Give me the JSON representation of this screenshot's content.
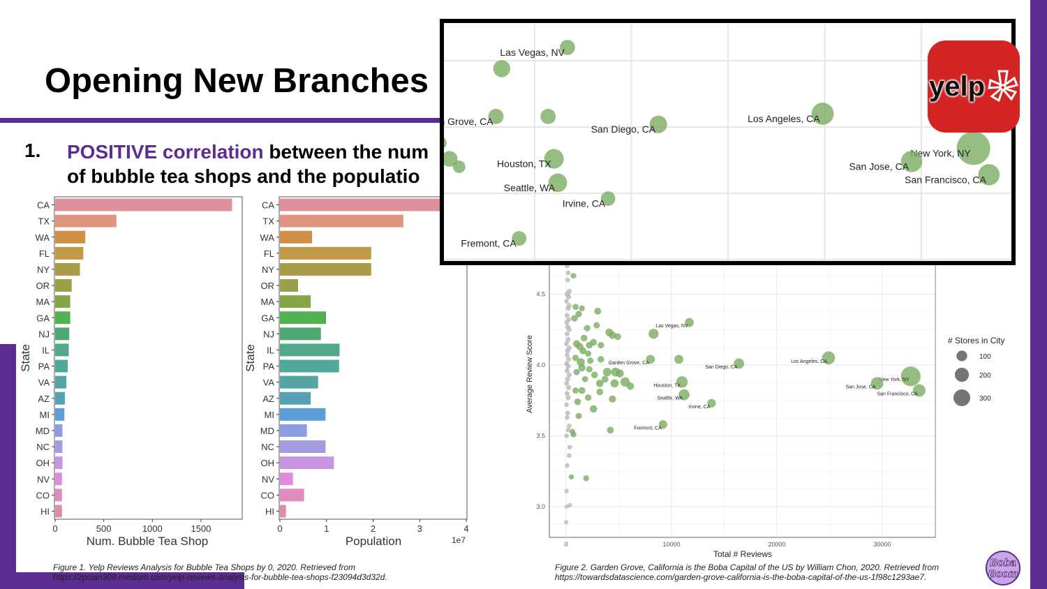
{
  "slide": {
    "title": "Opening New Branches",
    "bullet_number": "1.",
    "bullet_highlight": "POSITIVE correlation",
    "bullet_line1_rest": " between the num",
    "bullet_line2": "of bubble tea shops and the populatio",
    "caption1_line1": "Figure 1. Yelp Reviews Analysis for Bubble Tea Shops by 0, 2020. Retrieved from",
    "caption1_line2": "https://zpcian309.medium.com/yelp-reviews-analysis-for-bubble-tea-shops-f23094d3d32d.",
    "caption2_line1": "Figure 2. Garden Grove, California is the Boba Capital of the US by William Chon, 2020. Retrieved from",
    "caption2_line2": "https://towardsdatascience.com/garden-grove-california-is-the-boba-capital-of-the-us-1f98c1293ae7.",
    "yelp_logo_text": "yelp",
    "boba_logo_text": "Boba Boom",
    "accent_color": "#5b2c91",
    "yelp_red": "#d32323"
  },
  "chart_data": [
    {
      "type": "bar",
      "orientation": "horizontal",
      "categories": [
        "CA",
        "TX",
        "WA",
        "FL",
        "NY",
        "OR",
        "MA",
        "GA",
        "NJ",
        "IL",
        "PA",
        "VA",
        "AZ",
        "MI",
        "MD",
        "NC",
        "OH",
        "NV",
        "CO",
        "HI"
      ],
      "values": [
        1820,
        630,
        310,
        290,
        255,
        170,
        155,
        155,
        145,
        140,
        130,
        115,
        100,
        95,
        75,
        75,
        75,
        70,
        70,
        70
      ],
      "colors": [
        "#e0909c",
        "#e0937f",
        "#d08f45",
        "#c09a44",
        "#a89c46",
        "#9aa046",
        "#84a648",
        "#52b04e",
        "#4eaa72",
        "#4fa98a",
        "#50a896",
        "#52a5a3",
        "#54a2b4",
        "#5c9fd6",
        "#8c9ce0",
        "#a49be0",
        "#c896e0",
        "#e08ae0",
        "#e08cc0",
        "#e08cac"
      ],
      "xlabel": "Num. Bubble Tea Shop",
      "ylabel": "State",
      "xticks": [
        "0",
        "500",
        "1000",
        "1500"
      ],
      "xlim": [
        0,
        1930
      ]
    },
    {
      "type": "bar",
      "orientation": "horizontal",
      "categories": [
        "CA",
        "TX",
        "WA",
        "FL",
        "NY",
        "OR",
        "MA",
        "GA",
        "NJ",
        "IL",
        "PA",
        "VA",
        "AZ",
        "MI",
        "MD",
        "NC",
        "OH",
        "NV",
        "CO",
        "HI"
      ],
      "values": [
        3.95,
        2.65,
        0.69,
        1.96,
        1.96,
        0.39,
        0.66,
        0.99,
        0.88,
        1.28,
        1.27,
        0.82,
        0.66,
        0.98,
        0.58,
        0.98,
        1.16,
        0.28,
        0.52,
        0.13
      ],
      "colors": [
        "#e0909c",
        "#e0937f",
        "#d08f45",
        "#c09a44",
        "#a89c46",
        "#9aa046",
        "#84a648",
        "#52b04e",
        "#4eaa72",
        "#4fa98a",
        "#50a896",
        "#52a5a3",
        "#54a2b4",
        "#5c9fd6",
        "#8c9ce0",
        "#a49be0",
        "#c896e0",
        "#e08ae0",
        "#e08cc0",
        "#e08cac"
      ],
      "xlabel": "Population",
      "ylabel": "State",
      "xticks": [
        "0",
        "1",
        "2",
        "3",
        "4"
      ],
      "x_multiplier": "1e7",
      "xlim": [
        0,
        4.02
      ]
    },
    {
      "type": "scatter",
      "xlabel": "Total # Reviews",
      "ylabel": "Average Review Score",
      "xticks": [
        "0",
        "10000",
        "20000",
        "30000"
      ],
      "yticks": [
        "3.0",
        "3.5",
        "4.0",
        "4.5"
      ],
      "xlim": [
        -1600,
        35000
      ],
      "ylim": [
        2.8,
        4.75
      ],
      "legend_title": "# Stores in City",
      "legend_sizes": [
        "100",
        "200",
        "300"
      ],
      "legend_position": "right",
      "green": "#7aab62",
      "gray": "#b4b4b4",
      "labeled_points": [
        {
          "label": "Las Vegas, NV",
          "reviews": 11700,
          "score": 4.3,
          "stores": 40
        },
        {
          "label": "Garden Grove, CA",
          "reviews": 8000,
          "score": 4.04,
          "stores": 40
        },
        {
          "label": "San Diego, CA",
          "reviews": 16400,
          "score": 4.01,
          "stores": 60
        },
        {
          "label": "Los Angeles, CA",
          "reviews": 24900,
          "score": 4.05,
          "stores": 110
        },
        {
          "label": "Houston, TX",
          "reviews": 11000,
          "score": 3.88,
          "stores": 80
        },
        {
          "label": "Seattle, WA",
          "reviews": 11200,
          "score": 3.79,
          "stores": 70
        },
        {
          "label": "Irvine, CA",
          "reviews": 13800,
          "score": 3.73,
          "stores": 35
        },
        {
          "label": "Fremont, CA",
          "reviews": 9200,
          "score": 3.58,
          "stores": 35
        },
        {
          "label": "New York, NY",
          "reviews": 32700,
          "score": 3.92,
          "stores": 300
        },
        {
          "label": "San Jose, CA",
          "reviews": 29500,
          "score": 3.87,
          "stores": 100
        },
        {
          "label": "San Francisco, CA",
          "reviews": 33500,
          "score": 3.82,
          "stores": 100
        }
      ],
      "other_green_points": [
        [
          8300,
          4.22,
          55
        ],
        [
          10700,
          4.04,
          40
        ],
        [
          700,
          4.63,
          8
        ],
        [
          900,
          4.41,
          12
        ],
        [
          1500,
          4.4,
          10
        ],
        [
          3000,
          4.38,
          18
        ],
        [
          1200,
          4.36,
          14
        ],
        [
          800,
          4.33,
          16
        ],
        [
          2000,
          4.26,
          14
        ],
        [
          2900,
          4.28,
          14
        ],
        [
          4100,
          4.23,
          25
        ],
        [
          4400,
          4.21,
          22
        ],
        [
          4900,
          4.2,
          16
        ],
        [
          1700,
          4.19,
          16
        ],
        [
          2200,
          4.14,
          16
        ],
        [
          2600,
          4.16,
          18
        ],
        [
          3300,
          4.14,
          14
        ],
        [
          1000,
          4.15,
          20
        ],
        [
          1300,
          4.13,
          22
        ],
        [
          1600,
          4.1,
          18
        ],
        [
          2100,
          4.08,
          12
        ],
        [
          900,
          4.05,
          14
        ],
        [
          1400,
          4.02,
          28
        ],
        [
          2300,
          4.03,
          14
        ],
        [
          3300,
          4.04,
          16
        ],
        [
          1500,
          3.98,
          20
        ],
        [
          2200,
          3.97,
          14
        ],
        [
          1000,
          3.95,
          12
        ],
        [
          2700,
          3.93,
          16
        ],
        [
          3900,
          3.95,
          35
        ],
        [
          4700,
          3.95,
          40
        ],
        [
          5100,
          3.94,
          28
        ],
        [
          3700,
          3.9,
          16
        ],
        [
          3200,
          3.87,
          22
        ],
        [
          4600,
          3.87,
          30
        ],
        [
          5600,
          3.88,
          45
        ],
        [
          6100,
          3.85,
          22
        ],
        [
          1800,
          3.9,
          12
        ],
        [
          900,
          3.82,
          12
        ],
        [
          1500,
          3.82,
          18
        ],
        [
          3200,
          3.81,
          16
        ],
        [
          2100,
          3.77,
          14
        ],
        [
          4400,
          3.76,
          20
        ],
        [
          1100,
          3.74,
          16
        ],
        [
          2600,
          3.69,
          22
        ],
        [
          1200,
          3.64,
          12
        ],
        [
          4200,
          3.54,
          18
        ],
        [
          700,
          3.51,
          10
        ],
        [
          1900,
          3.2,
          10
        ],
        [
          600,
          3.53,
          8
        ],
        [
          500,
          3.21,
          6
        ]
      ],
      "other_gray_points": [
        [
          100,
          4.7,
          4
        ],
        [
          200,
          4.65,
          4
        ],
        [
          150,
          4.6,
          4
        ],
        [
          300,
          4.52,
          6
        ],
        [
          100,
          4.5,
          6
        ],
        [
          250,
          4.48,
          5
        ],
        [
          50,
          4.45,
          4
        ],
        [
          300,
          4.42,
          5
        ],
        [
          200,
          4.4,
          5
        ],
        [
          100,
          4.35,
          4
        ],
        [
          250,
          4.32,
          5
        ],
        [
          50,
          4.3,
          4
        ],
        [
          150,
          4.27,
          5
        ],
        [
          300,
          4.25,
          5
        ],
        [
          100,
          4.22,
          4
        ],
        [
          200,
          4.18,
          5
        ],
        [
          50,
          4.15,
          4
        ],
        [
          300,
          4.12,
          5
        ],
        [
          150,
          4.1,
          5
        ],
        [
          100,
          4.07,
          4
        ],
        [
          250,
          4.04,
          5
        ],
        [
          50,
          4.01,
          4
        ],
        [
          200,
          3.99,
          5
        ],
        [
          100,
          3.96,
          4
        ],
        [
          300,
          3.93,
          5
        ],
        [
          150,
          3.9,
          5
        ],
        [
          50,
          3.87,
          4
        ],
        [
          250,
          3.84,
          5
        ],
        [
          100,
          3.8,
          4
        ],
        [
          200,
          3.77,
          5
        ],
        [
          50,
          3.72,
          3
        ],
        [
          150,
          3.66,
          4
        ],
        [
          100,
          3.63,
          4
        ],
        [
          300,
          3.57,
          4
        ],
        [
          200,
          3.54,
          4
        ],
        [
          50,
          3.5,
          3
        ],
        [
          350,
          3.42,
          4
        ],
        [
          300,
          3.36,
          4
        ],
        [
          100,
          3.29,
          4
        ],
        [
          50,
          3.11,
          3
        ],
        [
          350,
          3.01,
          3
        ],
        [
          50,
          3.0,
          2
        ],
        [
          0,
          2.89,
          2
        ]
      ]
    }
  ]
}
